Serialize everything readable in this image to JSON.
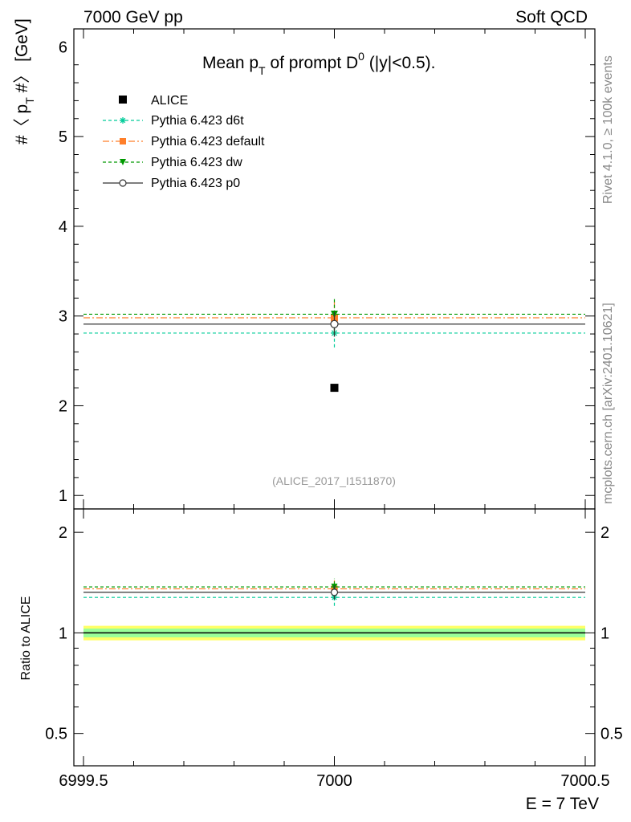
{
  "header": {
    "left": "7000 GeV pp",
    "right": "Soft QCD",
    "side_top": "Rivet 4.1.0, ≥ 100k events",
    "side_bottom": "mcplots.cern.ch [arXiv:2401.10621]"
  },
  "chart_data": {
    "type": "scatter",
    "title": "Mean p_T of prompt D^0 (|y|<0.5).",
    "title_parts": {
      "a": "Mean p",
      "b": "T",
      "c": " of prompt D",
      "d": "0",
      "e": " (|y|<0.5)."
    },
    "ylabel_parts": {
      "a": "#〈 p",
      "b": "T",
      "c": " #〉 [GeV]"
    },
    "xlabel": "E = 7 TeV",
    "analysis_label": "(ALICE_2017_I1511870)",
    "xlim": [
      6999.5,
      7000.5
    ],
    "ylim": [
      0.85,
      6.2
    ],
    "x_ticks": [
      "6999.5",
      "7000",
      "7000.5"
    ],
    "y_ticks": [
      "1",
      "2",
      "3",
      "4",
      "5",
      "6"
    ],
    "data": {
      "name": "ALICE",
      "x": 7000,
      "y": 2.2,
      "color": "#000000"
    },
    "series": [
      {
        "name": "Pythia 6.423 d6t",
        "y": 2.81,
        "err": 0.16,
        "color": "#00cc99",
        "dash": "4,3",
        "marker": "star"
      },
      {
        "name": "Pythia 6.423 default",
        "y": 2.98,
        "err": 0.18,
        "color": "#ff7f2a",
        "dash": "8,3,2,3",
        "marker": "square"
      },
      {
        "name": "Pythia 6.423 dw",
        "y": 3.02,
        "err": 0.18,
        "color": "#009900",
        "dash": "4,3",
        "marker": "triangle-down"
      },
      {
        "name": "Pythia 6.423 p0",
        "y": 2.91,
        "err": 0.14,
        "color": "#333333",
        "dash": "",
        "marker": "circle"
      }
    ],
    "ratio": {
      "ylabel": "Ratio to ALICE",
      "ylim": [
        0.4,
        2.35
      ],
      "ticks": [
        "0.5",
        "1",
        "2"
      ],
      "band_inner": [
        0.97,
        1.03
      ],
      "band_outer": [
        0.95,
        1.05
      ],
      "inner_color": "#99ff99",
      "outer_color": "#ffff66"
    }
  }
}
